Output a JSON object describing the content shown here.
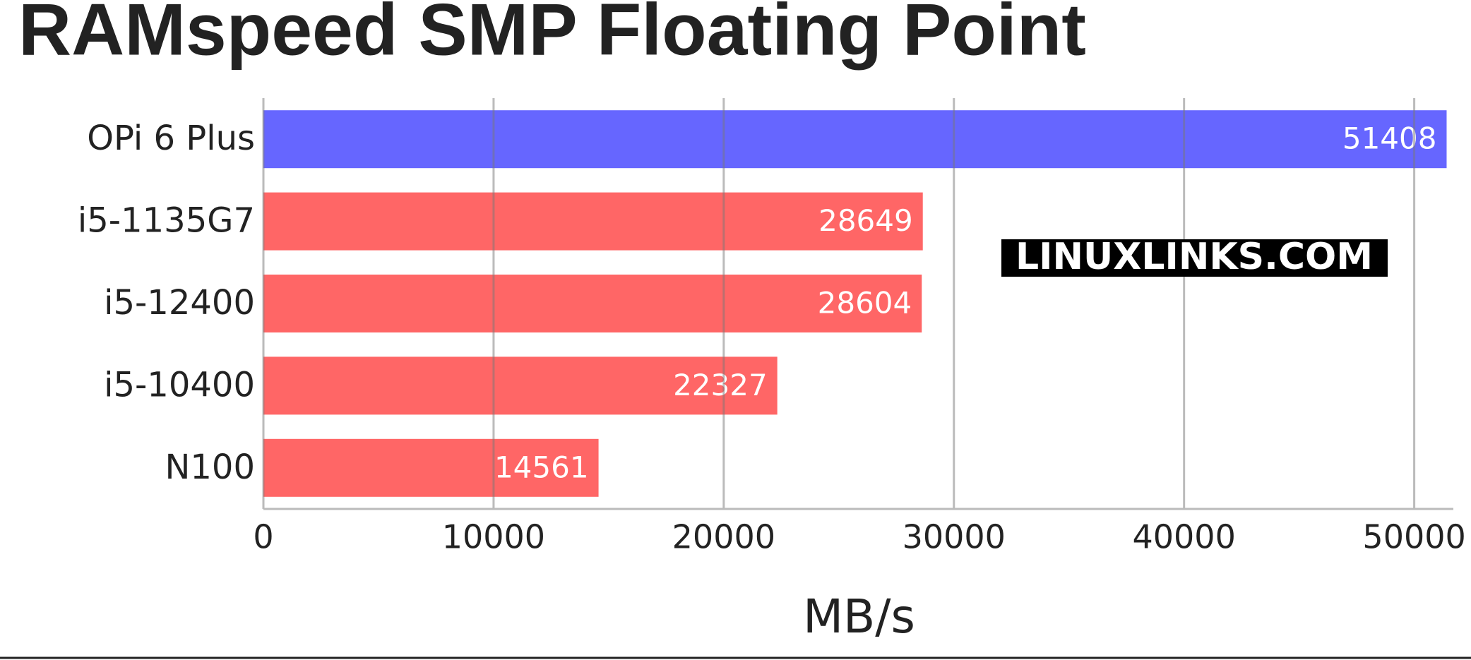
{
  "chart_data": {
    "type": "hbar",
    "title": "RAMspeed SMP Floating Point",
    "categories": [
      "OPi 6 Plus",
      "i5-1135G7",
      "i5-12400",
      "i5-10400",
      "N100"
    ],
    "values": [
      51408,
      28649,
      28604,
      22327,
      14561
    ],
    "colors": [
      "#6666ff",
      "#ff6666",
      "#ff6666",
      "#ff6666",
      "#ff6666"
    ],
    "xlabel": "MB/s",
    "xlim": [
      0,
      51700
    ],
    "xticks": [
      0,
      10000,
      20000,
      30000,
      40000,
      50000
    ],
    "grid": true,
    "watermark": "LINUXLINKS.COM"
  }
}
